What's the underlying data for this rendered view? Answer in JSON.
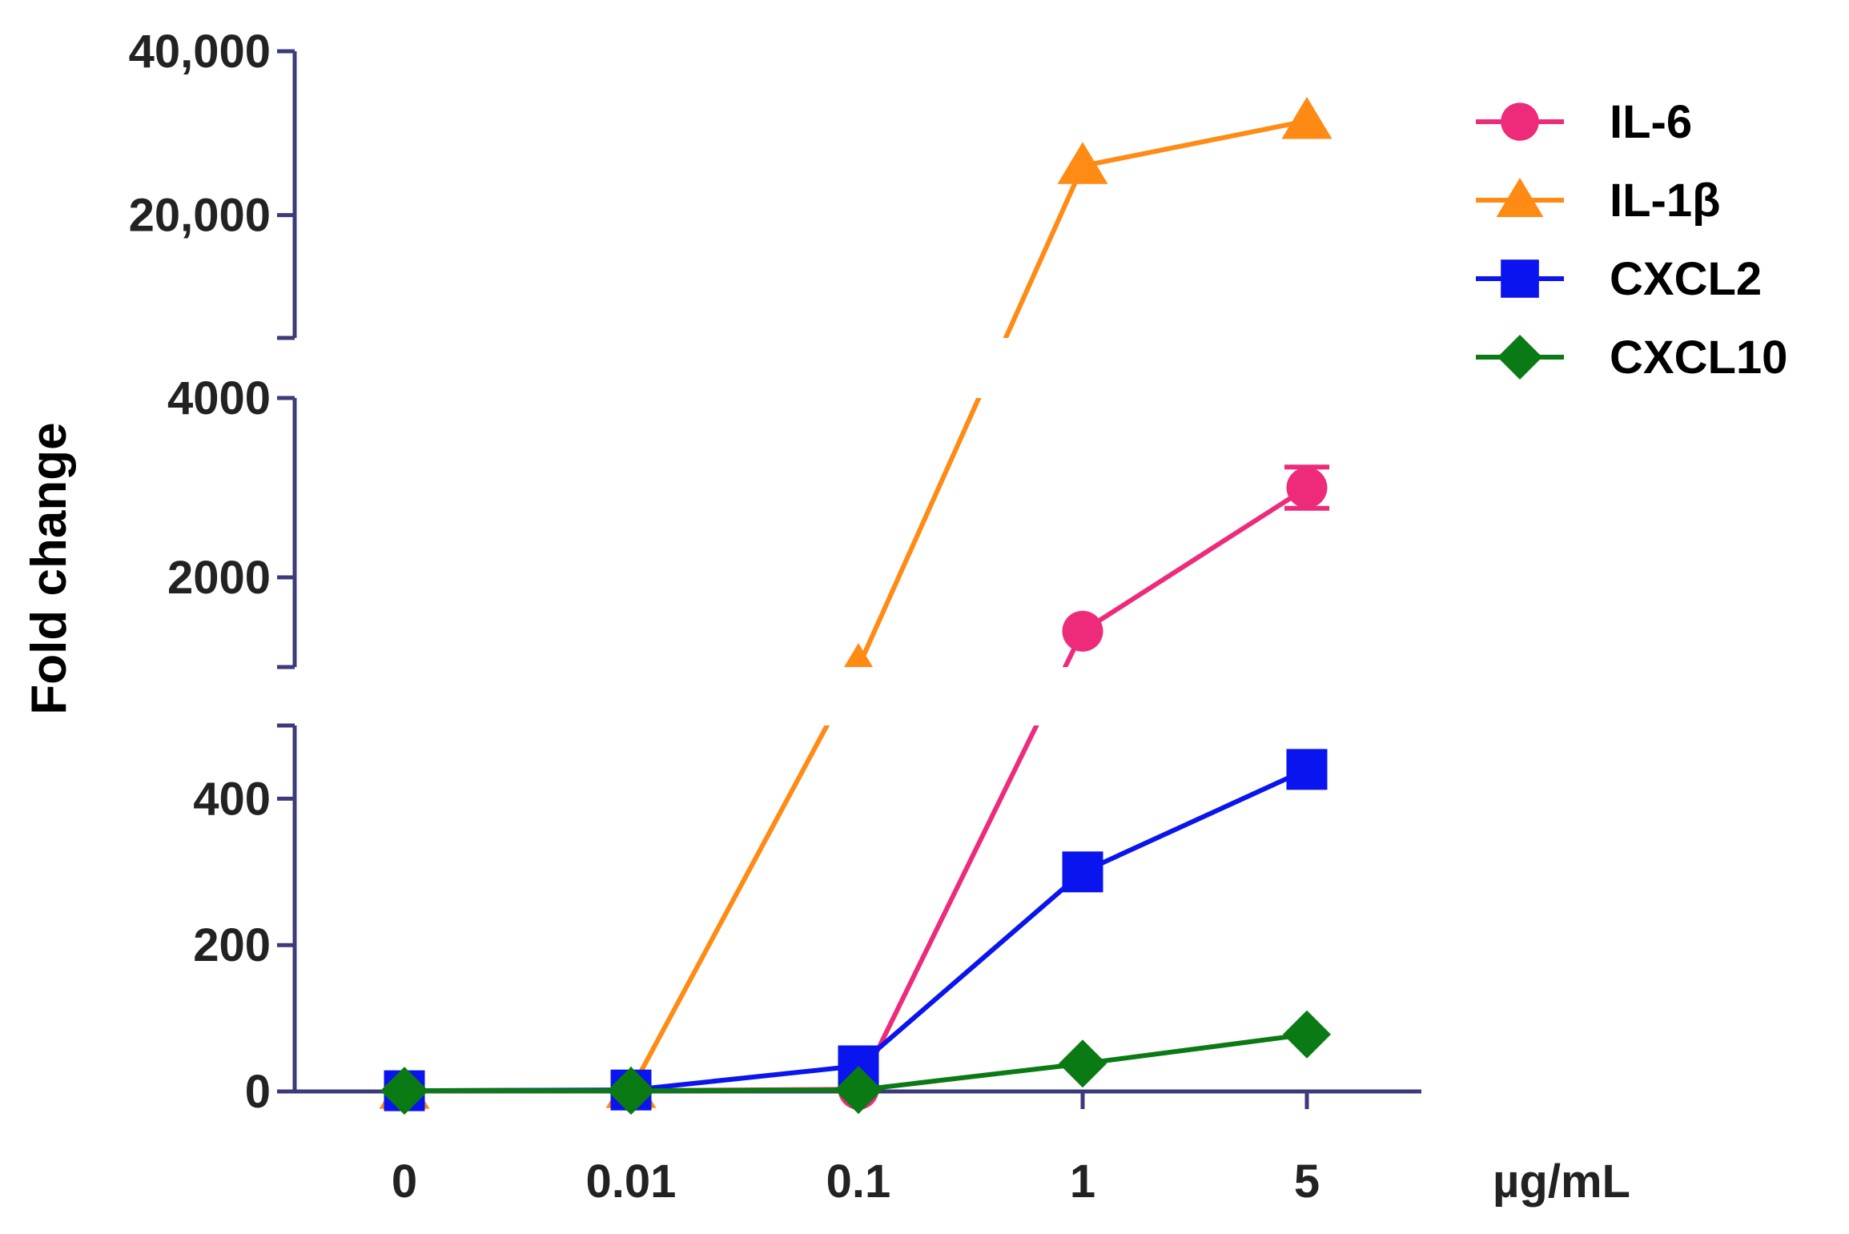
{
  "chart_data": {
    "type": "line",
    "title": "",
    "xlabel": "µg/mL",
    "ylabel": "Fold change",
    "categories": [
      "0",
      "0.01",
      "0.1",
      "1",
      "5"
    ],
    "y_axis_segments": [
      {
        "range": [
          0,
          500
        ],
        "ticks": [
          0,
          200,
          400
        ],
        "tick_labels": [
          "0",
          "200",
          "400"
        ]
      },
      {
        "range": [
          1000,
          4000
        ],
        "ticks": [
          2000,
          4000
        ],
        "tick_labels": [
          "2000",
          "4000"
        ]
      },
      {
        "range": [
          5000,
          40000
        ],
        "ticks": [
          20000,
          40000
        ],
        "tick_labels": [
          "20,000",
          "40,000"
        ]
      }
    ],
    "series": [
      {
        "name": "IL-6",
        "color": "#ee2a7b",
        "marker": "circle",
        "values": [
          1,
          1,
          3,
          1400,
          3000
        ],
        "errors": [
          0,
          0,
          0,
          0,
          230
        ]
      },
      {
        "name": "IL-1β",
        "color": "#ff8a14",
        "marker": "triangle",
        "values": [
          1,
          2,
          1000,
          26000,
          31500
        ],
        "errors": [
          0,
          0,
          0,
          0,
          0
        ]
      },
      {
        "name": "CXCL2",
        "color": "#0a14ee",
        "marker": "square",
        "values": [
          1,
          2,
          35,
          300,
          440
        ],
        "errors": [
          0,
          0,
          0,
          0,
          0
        ]
      },
      {
        "name": "CXCL10",
        "color": "#0a7a14",
        "marker": "diamond",
        "values": [
          1,
          1,
          2,
          38,
          78
        ],
        "errors": [
          0,
          0,
          0,
          0,
          0
        ]
      }
    ],
    "legend": "top-right",
    "axis_color": "#3b3a7a"
  }
}
